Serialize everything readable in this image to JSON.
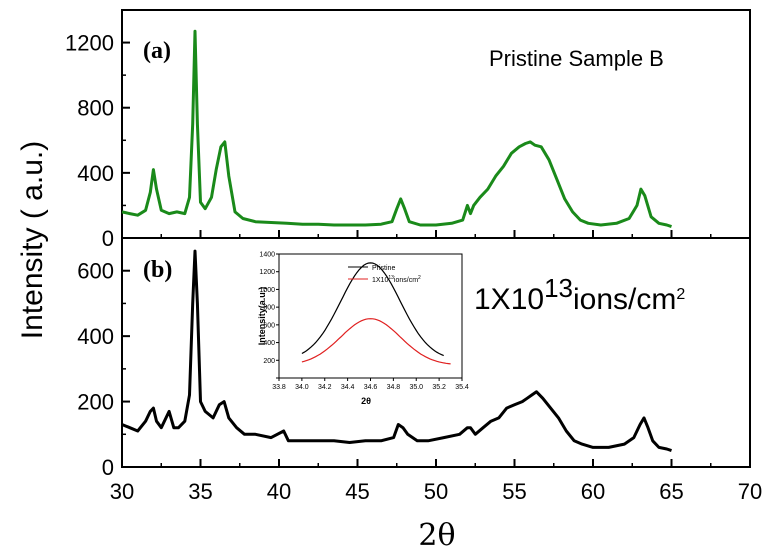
{
  "chart_data": [
    {
      "panel": "(a)",
      "type": "line",
      "annotation": "Pristine Sample B",
      "ylabel": "Intensity ( a.u.)",
      "xlabel": "2θ",
      "xlim": [
        30,
        70
      ],
      "ylim": [
        0,
        1400
      ],
      "yticks": [
        0,
        400,
        800,
        1200
      ],
      "xticks": [
        30,
        35,
        40,
        45,
        50,
        55,
        60,
        65,
        70
      ],
      "color": "#1a8a1a",
      "series": [
        {
          "x": [
            30,
            30.5,
            31,
            31.5,
            31.8,
            32.0,
            32.2,
            32.5,
            33,
            33.5,
            34,
            34.3,
            34.5,
            34.65,
            34.8,
            35,
            35.3,
            35.7,
            36,
            36.3,
            36.55,
            36.8,
            37.2,
            37.7,
            38.5,
            39.5,
            40.5,
            41.5,
            42.5,
            43.5,
            44.5,
            45.5,
            46.5,
            47.2,
            47.5,
            47.75,
            48,
            48.3,
            49,
            50,
            51,
            51.7,
            52.0,
            52.2,
            52.4,
            52.8,
            53.3,
            53.8,
            54.3,
            54.8,
            55.3,
            55.7,
            56.0,
            56.3,
            56.7,
            57.2,
            57.7,
            58.2,
            58.7,
            59.2,
            59.7,
            60.5,
            61.5,
            62.3,
            62.8,
            63.05,
            63.3,
            63.7,
            64.2,
            64.7,
            65
          ],
          "y": [
            160,
            150,
            140,
            170,
            280,
            420,
            300,
            170,
            150,
            160,
            150,
            250,
            700,
            1270,
            700,
            220,
            180,
            250,
            420,
            560,
            590,
            380,
            160,
            120,
            100,
            95,
            90,
            85,
            85,
            80,
            80,
            80,
            85,
            100,
            180,
            240,
            180,
            100,
            80,
            80,
            90,
            110,
            200,
            150,
            200,
            250,
            300,
            380,
            440,
            520,
            560,
            580,
            590,
            570,
            560,
            480,
            360,
            240,
            160,
            110,
            90,
            80,
            90,
            120,
            200,
            300,
            260,
            130,
            90,
            80,
            70
          ]
        }
      ]
    },
    {
      "panel": "(b)",
      "type": "line",
      "annotation_base": "1X10",
      "annotation_exp": "13",
      "annotation_unit": "ions/cm",
      "annotation_unit_exp": "2",
      "xlim": [
        30,
        70
      ],
      "ylim": [
        0,
        700
      ],
      "yticks": [
        0,
        200,
        400,
        600
      ],
      "xticks": [
        30,
        35,
        40,
        45,
        50,
        55,
        60,
        65,
        70
      ],
      "color": "#000000",
      "series": [
        {
          "x": [
            30,
            30.5,
            31,
            31.5,
            31.8,
            32.0,
            32.2,
            32.5,
            33,
            33.3,
            33.6,
            34,
            34.3,
            34.5,
            34.65,
            34.8,
            35,
            35.3,
            35.8,
            36.2,
            36.5,
            36.8,
            37.3,
            37.8,
            38.5,
            39.5,
            40.3,
            40.6,
            41.5,
            42.5,
            43.5,
            44.5,
            45.5,
            46.5,
            47.3,
            47.6,
            47.9,
            48.2,
            48.8,
            49.5,
            50.5,
            51.5,
            52.0,
            52.2,
            52.5,
            53,
            53.5,
            54,
            54.5,
            55,
            55.5,
            55.8,
            56.1,
            56.4,
            56.8,
            57.3,
            57.8,
            58.3,
            58.8,
            59.3,
            60,
            61,
            62,
            62.6,
            63.0,
            63.25,
            63.5,
            63.8,
            64.2,
            64.7,
            65
          ],
          "y": [
            130,
            120,
            110,
            140,
            170,
            180,
            140,
            120,
            170,
            120,
            120,
            140,
            220,
            500,
            660,
            500,
            200,
            170,
            150,
            190,
            200,
            150,
            120,
            100,
            100,
            90,
            110,
            80,
            80,
            80,
            80,
            75,
            80,
            80,
            90,
            130,
            120,
            100,
            80,
            80,
            90,
            100,
            120,
            120,
            100,
            120,
            140,
            150,
            180,
            190,
            200,
            210,
            220,
            230,
            210,
            180,
            150,
            110,
            80,
            70,
            60,
            60,
            70,
            90,
            130,
            150,
            120,
            80,
            60,
            55,
            50
          ]
        }
      ]
    },
    {
      "panel": "inset",
      "type": "line",
      "ylabel": "Intensity(a.u.)",
      "xlabel": "2θ",
      "xlim": [
        33.8,
        35.4
      ],
      "ylim": [
        0,
        1400
      ],
      "xticks": [
        "33.8",
        "34.0",
        "34.2",
        "34.4",
        "34.6",
        "34.8",
        "35.0",
        "35.2",
        "35.4"
      ],
      "yticks": [
        "0",
        "200",
        "400",
        "600",
        "800",
        "1000",
        "1200",
        "1400"
      ],
      "series": [
        {
          "name": "Pristine",
          "color": "#000000",
          "peak_x": 34.6,
          "peak_y": 1300,
          "base_y": 200,
          "x_start": 34.0,
          "x_end": 35.25
        },
        {
          "name": "1X10",
          "name_exp": "13",
          "name_tail": "ions/cm",
          "name_tail_exp": "2",
          "color": "#e02020",
          "peak_x": 34.6,
          "peak_y": 670,
          "base_y": 145,
          "x_start": 34.0,
          "x_end": 35.3
        }
      ]
    }
  ]
}
